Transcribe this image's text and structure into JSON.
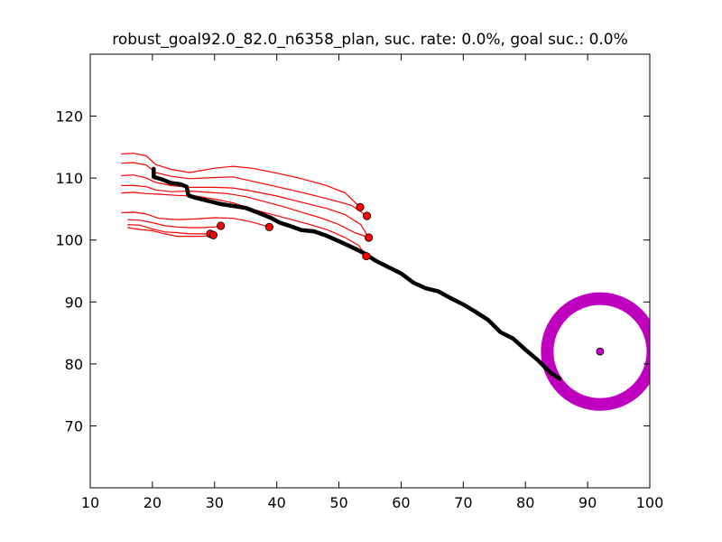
{
  "chart_data": {
    "type": "line",
    "title": "robust_goal92.0_82.0_n6358_plan, suc. rate: 0.0%, goal suc.: 0.0%",
    "xlabel": "",
    "ylabel": "",
    "xlim": [
      10,
      100
    ],
    "ylim": [
      60,
      130
    ],
    "xticks": [
      "10",
      "20",
      "30",
      "40",
      "50",
      "60",
      "70",
      "80",
      "90",
      "100"
    ],
    "yticks": [
      "70",
      "80",
      "90",
      "100",
      "110",
      "120"
    ],
    "grid": false,
    "colors": {
      "trajectories": "#ff0000",
      "endpoints": "#ff0000",
      "plan": "#000000",
      "goal": "#bf00bf"
    },
    "goal": {
      "x": 92.0,
      "y": 82.0,
      "radius": 8.5
    },
    "plan": [
      [
        20.2,
        111.5
      ],
      [
        20.2,
        110.2
      ],
      [
        21.5,
        109.8
      ],
      [
        23,
        109.2
      ],
      [
        24.5,
        109
      ],
      [
        25.5,
        108.6
      ],
      [
        25.8,
        107.2
      ],
      [
        27,
        106.8
      ],
      [
        29,
        106.3
      ],
      [
        31,
        105.8
      ],
      [
        33,
        105.5
      ],
      [
        35,
        105.2
      ],
      [
        37,
        104.4
      ],
      [
        39,
        103.6
      ],
      [
        40.5,
        102.8
      ],
      [
        42,
        102.3
      ],
      [
        44,
        101.6
      ],
      [
        46,
        101.4
      ],
      [
        48,
        100.7
      ],
      [
        50,
        99.8
      ],
      [
        52,
        98.9
      ],
      [
        54,
        97.9
      ],
      [
        56,
        96.6
      ],
      [
        58,
        95.6
      ],
      [
        60,
        94.6
      ],
      [
        62,
        93.1
      ],
      [
        64,
        92.2
      ],
      [
        66,
        91.7
      ],
      [
        68,
        90.6
      ],
      [
        70,
        89.6
      ],
      [
        72,
        88.4
      ],
      [
        74,
        87.1
      ],
      [
        76,
        85.1
      ],
      [
        78,
        84.1
      ],
      [
        80,
        82.3
      ],
      [
        82,
        80.6
      ],
      [
        84,
        78.6
      ],
      [
        85.5,
        77.6
      ]
    ],
    "trajectories": [
      [
        [
          15,
          113.9
        ],
        [
          17,
          114
        ],
        [
          19,
          113.6
        ],
        [
          20.5,
          112.2
        ],
        [
          23,
          111.4
        ],
        [
          26,
          110.9
        ],
        [
          30,
          111.6
        ],
        [
          33,
          111.9
        ],
        [
          36,
          111.6
        ],
        [
          40,
          110.8
        ],
        [
          44,
          109.9
        ],
        [
          48,
          108.8
        ],
        [
          51,
          107.6
        ],
        [
          53.4,
          105.3
        ]
      ],
      [
        [
          15,
          112.4
        ],
        [
          17,
          112.5
        ],
        [
          19,
          112.1
        ],
        [
          20.5,
          110.9
        ],
        [
          23,
          110.3
        ],
        [
          26,
          109.9
        ],
        [
          30,
          110.1
        ],
        [
          33,
          110.2
        ],
        [
          36,
          109.5
        ],
        [
          40,
          108.6
        ],
        [
          44,
          107.7
        ],
        [
          48,
          106.7
        ],
        [
          52,
          105.6
        ],
        [
          54.5,
          103.9
        ]
      ],
      [
        [
          15,
          110.4
        ],
        [
          17,
          110.5
        ],
        [
          19,
          110.0
        ],
        [
          20.5,
          109.3
        ],
        [
          23,
          108.8
        ],
        [
          26,
          108.5
        ],
        [
          30,
          108.5
        ],
        [
          33,
          108.4
        ],
        [
          36,
          107.9
        ],
        [
          40,
          107.1
        ],
        [
          44,
          106.1
        ],
        [
          48,
          105.1
        ],
        [
          51,
          104.1
        ],
        [
          53.5,
          102.5
        ],
        [
          54.8,
          100.4
        ]
      ],
      [
        [
          15,
          108.8
        ],
        [
          17,
          108.8
        ],
        [
          19,
          108.6
        ],
        [
          20.5,
          108.1
        ],
        [
          23,
          107.8
        ],
        [
          26,
          107.9
        ],
        [
          29,
          107.7
        ],
        [
          32,
          107.5
        ],
        [
          35,
          107.0
        ],
        [
          38,
          106.2
        ],
        [
          41,
          105.4
        ],
        [
          44,
          104.5
        ],
        [
          47,
          103.6
        ],
        [
          50,
          102.5
        ],
        [
          52.5,
          101.2
        ],
        [
          54.8,
          100.4
        ]
      ],
      [
        [
          15,
          107.6
        ],
        [
          17,
          107.7
        ],
        [
          19,
          107.5
        ],
        [
          21,
          107.4
        ],
        [
          24,
          107.2
        ],
        [
          27,
          107.1
        ],
        [
          30,
          106.6
        ],
        [
          33,
          106.0
        ],
        [
          36,
          105.0
        ],
        [
          39,
          104.2
        ],
        [
          42,
          103.4
        ],
        [
          45,
          102.6
        ],
        [
          48,
          101.7
        ],
        [
          51,
          100.4
        ],
        [
          53.2,
          99.1
        ],
        [
          54.4,
          97.4
        ]
      ],
      [
        [
          15,
          104.4
        ],
        [
          17,
          104.5
        ],
        [
          19,
          104.2
        ],
        [
          21,
          103.5
        ],
        [
          24,
          103.3
        ],
        [
          27,
          103.4
        ],
        [
          30,
          103.6
        ],
        [
          33,
          103.5
        ],
        [
          36,
          102.9
        ],
        [
          38.8,
          102.1
        ]
      ],
      [
        [
          16,
          103.3
        ],
        [
          18,
          103.2
        ],
        [
          20,
          102.8
        ],
        [
          22,
          102.3
        ],
        [
          24,
          102.1
        ],
        [
          26,
          102.0
        ],
        [
          28,
          102.0
        ],
        [
          30,
          102.1
        ],
        [
          31,
          102.3
        ]
      ],
      [
        [
          16,
          102.5
        ],
        [
          18,
          102.4
        ],
        [
          20,
          101.8
        ],
        [
          22,
          101.3
        ],
        [
          24,
          101.2
        ],
        [
          26,
          101.0
        ],
        [
          28,
          101.0
        ],
        [
          29.3,
          101.0
        ]
      ],
      [
        [
          16,
          102.0
        ],
        [
          18,
          101.7
        ],
        [
          20,
          101.5
        ],
        [
          22,
          101.0
        ],
        [
          24,
          100.6
        ],
        [
          26,
          100.6
        ],
        [
          28,
          100.6
        ],
        [
          29.8,
          100.8
        ]
      ]
    ],
    "endpoints": [
      [
        53.4,
        105.3
      ],
      [
        54.5,
        103.9
      ],
      [
        54.8,
        100.4
      ],
      [
        54.4,
        97.4
      ],
      [
        38.8,
        102.1
      ],
      [
        31.0,
        102.3
      ],
      [
        29.3,
        101.0
      ],
      [
        29.8,
        100.8
      ]
    ]
  }
}
